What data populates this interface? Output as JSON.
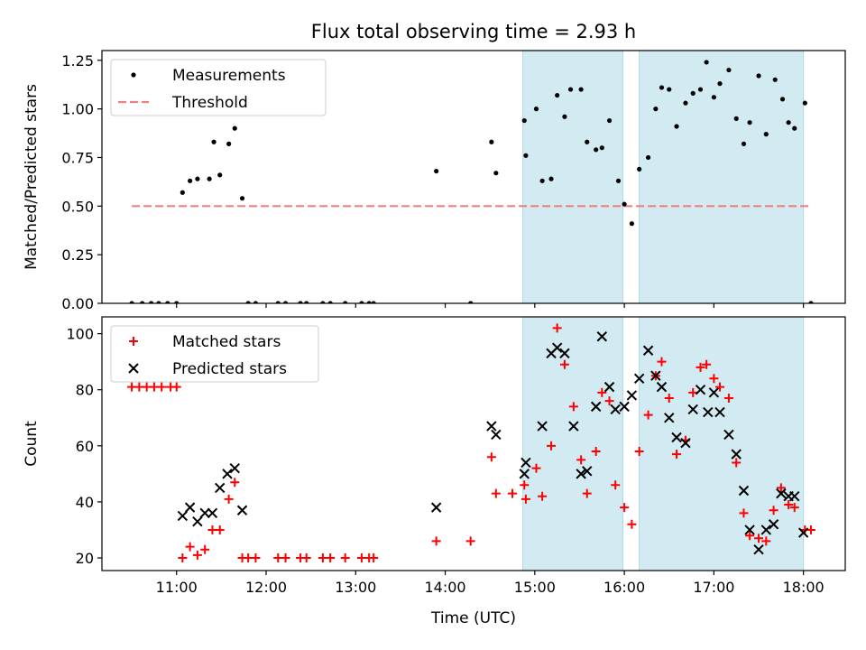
{
  "title": "Flux total observing time = 2.93 h",
  "colors": {
    "measurement": "#000000",
    "threshold": "#f08080",
    "matched": "#ff0000",
    "predicted": "#000000",
    "shade": "#add8e6"
  },
  "chart_data": [
    {
      "type": "scatter",
      "panel": "top",
      "ylabel": "Matched/Predicted stars",
      "ylim": [
        0,
        1.3
      ],
      "xlim": [
        "10:10",
        "18:28"
      ],
      "yticks": [
        0.0,
        0.25,
        0.5,
        0.75,
        1.0,
        1.25
      ],
      "ytick_labels": [
        "0.00",
        "0.25",
        "0.50",
        "0.75",
        "1.00",
        "1.25"
      ],
      "legend": {
        "placement": "top-left",
        "entries": [
          "Measurements",
          "Threshold"
        ]
      },
      "threshold": {
        "name": "Threshold",
        "y": 0.5,
        "x_range": [
          "10:30",
          "18:05"
        ]
      },
      "shaded_intervals": [
        [
          "14:52",
          "15:59"
        ],
        [
          "16:10",
          "18:00"
        ]
      ],
      "series": [
        {
          "name": "Measurements",
          "points": [
            [
              "10:30",
              0
            ],
            [
              "10:37",
              0
            ],
            [
              "10:43",
              0
            ],
            [
              "10:48",
              0
            ],
            [
              "10:54",
              0
            ],
            [
              "11:00",
              0
            ],
            [
              "11:04",
              0.57
            ],
            [
              "11:09",
              0.63
            ],
            [
              "11:14",
              0.64
            ],
            [
              "11:22",
              0.64
            ],
            [
              "11:25",
              0.83
            ],
            [
              "11:29",
              0.66
            ],
            [
              "11:35",
              0.82
            ],
            [
              "11:39",
              0.9
            ],
            [
              "11:44",
              0.54
            ],
            [
              "11:48",
              0
            ],
            [
              "11:53",
              0
            ],
            [
              "12:08",
              0
            ],
            [
              "12:13",
              0
            ],
            [
              "12:23",
              0
            ],
            [
              "12:27",
              0
            ],
            [
              "12:38",
              0
            ],
            [
              "12:43",
              0
            ],
            [
              "12:53",
              0
            ],
            [
              "13:04",
              0
            ],
            [
              "13:09",
              0
            ],
            [
              "13:12",
              0
            ],
            [
              "13:54",
              0.68
            ],
            [
              "14:17",
              0
            ],
            [
              "14:31",
              0.83
            ],
            [
              "14:34",
              0.67
            ],
            [
              "14:53",
              0.94
            ],
            [
              "14:54",
              0.76
            ],
            [
              "15:01",
              1.0
            ],
            [
              "15:05",
              0.63
            ],
            [
              "15:11",
              0.64
            ],
            [
              "15:15",
              1.07
            ],
            [
              "15:20",
              0.96
            ],
            [
              "15:24",
              1.1
            ],
            [
              "15:31",
              1.1
            ],
            [
              "15:35",
              0.83
            ],
            [
              "15:41",
              0.79
            ],
            [
              "15:45",
              0.8
            ],
            [
              "15:50",
              0.94
            ],
            [
              "15:56",
              0.63
            ],
            [
              "16:00",
              0.51
            ],
            [
              "16:05",
              0.41
            ],
            [
              "16:10",
              0.69
            ],
            [
              "16:16",
              0.75
            ],
            [
              "16:21",
              1.0
            ],
            [
              "16:25",
              1.11
            ],
            [
              "16:30",
              1.1
            ],
            [
              "16:35",
              0.91
            ],
            [
              "16:41",
              1.03
            ],
            [
              "16:46",
              1.08
            ],
            [
              "16:51",
              1.1
            ],
            [
              "16:55",
              1.24
            ],
            [
              "17:00",
              1.06
            ],
            [
              "17:04",
              1.13
            ],
            [
              "17:10",
              1.2
            ],
            [
              "17:15",
              0.95
            ],
            [
              "17:20",
              0.82
            ],
            [
              "17:24",
              0.93
            ],
            [
              "17:30",
              1.17
            ],
            [
              "17:35",
              0.87
            ],
            [
              "17:41",
              1.15
            ],
            [
              "17:46",
              1.05
            ],
            [
              "17:50",
              0.93
            ],
            [
              "17:54",
              0.9
            ],
            [
              "18:01",
              1.03
            ],
            [
              "18:05",
              0
            ]
          ]
        }
      ]
    },
    {
      "type": "scatter",
      "panel": "bottom",
      "xlabel": "Time (UTC)",
      "ylabel": "Count",
      "ylim": [
        15.5,
        106
      ],
      "xlim": [
        "10:10",
        "18:28"
      ],
      "yticks": [
        20,
        40,
        60,
        80,
        100
      ],
      "ytick_labels": [
        "20",
        "40",
        "60",
        "80",
        "100"
      ],
      "xticks": [
        "11:00",
        "12:00",
        "13:00",
        "14:00",
        "15:00",
        "16:00",
        "17:00",
        "18:00"
      ],
      "xtick_labels": [
        "11:00",
        "12:00",
        "13:00",
        "14:00",
        "15:00",
        "16:00",
        "17:00",
        "18:00"
      ],
      "legend": {
        "placement": "top-left",
        "entries": [
          "Matched stars",
          "Predicted stars"
        ]
      },
      "shaded_intervals": [
        [
          "14:52",
          "15:59"
        ],
        [
          "16:10",
          "18:00"
        ]
      ],
      "series": [
        {
          "name": "Matched stars",
          "points": [
            [
              "10:30",
              81
            ],
            [
              "10:35",
              81
            ],
            [
              "10:40",
              81
            ],
            [
              "10:45",
              81
            ],
            [
              "10:50",
              81
            ],
            [
              "10:56",
              81
            ],
            [
              "11:00",
              81
            ],
            [
              "11:04",
              20
            ],
            [
              "11:09",
              24
            ],
            [
              "11:14",
              21
            ],
            [
              "11:19",
              23
            ],
            [
              "11:24",
              30
            ],
            [
              "11:29",
              30
            ],
            [
              "11:35",
              41
            ],
            [
              "11:39",
              47
            ],
            [
              "11:44",
              20
            ],
            [
              "11:48",
              20
            ],
            [
              "11:53",
              20
            ],
            [
              "12:08",
              20
            ],
            [
              "12:13",
              20
            ],
            [
              "12:23",
              20
            ],
            [
              "12:27",
              20
            ],
            [
              "12:38",
              20
            ],
            [
              "12:43",
              20
            ],
            [
              "12:53",
              20
            ],
            [
              "13:04",
              20
            ],
            [
              "13:09",
              20
            ],
            [
              "13:12",
              20
            ],
            [
              "13:54",
              26
            ],
            [
              "14:17",
              26
            ],
            [
              "14:31",
              56
            ],
            [
              "14:34",
              43
            ],
            [
              "14:45",
              43
            ],
            [
              "14:53",
              46
            ],
            [
              "14:54",
              41
            ],
            [
              "15:01",
              52
            ],
            [
              "15:05",
              42
            ],
            [
              "15:11",
              60
            ],
            [
              "15:15",
              102
            ],
            [
              "15:20",
              89
            ],
            [
              "15:26",
              74
            ],
            [
              "15:31",
              55
            ],
            [
              "15:35",
              43
            ],
            [
              "15:41",
              58
            ],
            [
              "15:45",
              79
            ],
            [
              "15:50",
              76
            ],
            [
              "15:54",
              46
            ],
            [
              "16:00",
              38
            ],
            [
              "16:05",
              32
            ],
            [
              "16:10",
              58
            ],
            [
              "16:16",
              71
            ],
            [
              "16:21",
              85
            ],
            [
              "16:25",
              90
            ],
            [
              "16:30",
              77
            ],
            [
              "16:35",
              57
            ],
            [
              "16:41",
              62
            ],
            [
              "16:46",
              79
            ],
            [
              "16:51",
              88
            ],
            [
              "16:55",
              89
            ],
            [
              "17:00",
              84
            ],
            [
              "17:04",
              81
            ],
            [
              "17:10",
              77
            ],
            [
              "17:15",
              54
            ],
            [
              "17:20",
              36
            ],
            [
              "17:24",
              28
            ],
            [
              "17:30",
              27
            ],
            [
              "17:35",
              26
            ],
            [
              "17:40",
              37
            ],
            [
              "17:45",
              45
            ],
            [
              "17:50",
              39
            ],
            [
              "17:54",
              38
            ],
            [
              "18:01",
              30
            ],
            [
              "18:05",
              30
            ]
          ]
        },
        {
          "name": "Predicted stars",
          "points": [
            [
              "11:04",
              35
            ],
            [
              "11:09",
              38
            ],
            [
              "11:14",
              33
            ],
            [
              "11:19",
              36
            ],
            [
              "11:24",
              36
            ],
            [
              "11:29",
              45
            ],
            [
              "11:34",
              50
            ],
            [
              "11:39",
              52
            ],
            [
              "11:44",
              37
            ],
            [
              "13:54",
              38
            ],
            [
              "14:31",
              67
            ],
            [
              "14:34",
              64
            ],
            [
              "14:53",
              50
            ],
            [
              "14:54",
              54
            ],
            [
              "15:05",
              67
            ],
            [
              "15:11",
              93
            ],
            [
              "15:15",
              95
            ],
            [
              "15:20",
              93
            ],
            [
              "15:26",
              67
            ],
            [
              "15:31",
              50
            ],
            [
              "15:35",
              51
            ],
            [
              "15:41",
              74
            ],
            [
              "15:45",
              99
            ],
            [
              "15:50",
              81
            ],
            [
              "15:54",
              73
            ],
            [
              "16:00",
              74
            ],
            [
              "16:05",
              78
            ],
            [
              "16:10",
              84
            ],
            [
              "16:16",
              94
            ],
            [
              "16:21",
              85
            ],
            [
              "16:25",
              81
            ],
            [
              "16:30",
              70
            ],
            [
              "16:35",
              63
            ],
            [
              "16:41",
              61
            ],
            [
              "16:46",
              73
            ],
            [
              "16:51",
              80
            ],
            [
              "16:56",
              72
            ],
            [
              "17:00",
              79
            ],
            [
              "17:04",
              72
            ],
            [
              "17:10",
              64
            ],
            [
              "17:15",
              57
            ],
            [
              "17:20",
              44
            ],
            [
              "17:24",
              30
            ],
            [
              "17:30",
              23
            ],
            [
              "17:35",
              30
            ],
            [
              "17:40",
              32
            ],
            [
              "17:45",
              43
            ],
            [
              "17:50",
              42
            ],
            [
              "17:54",
              42
            ],
            [
              "18:00",
              29
            ]
          ]
        }
      ]
    }
  ]
}
